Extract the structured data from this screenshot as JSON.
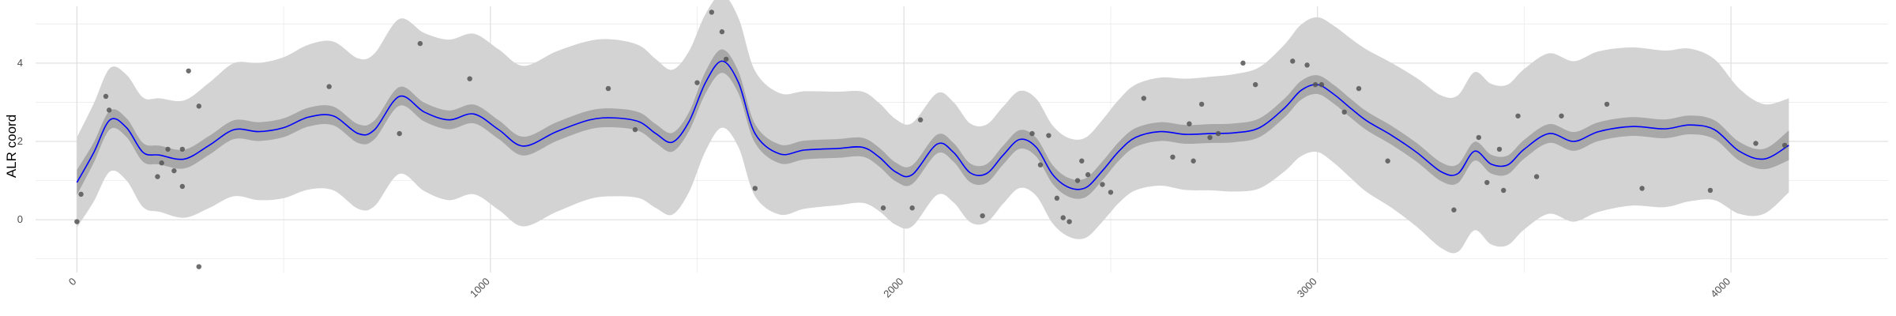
{
  "chart_data": {
    "type": "line",
    "title": "",
    "xlabel": "",
    "ylabel": "ALR coord",
    "xlim": [
      -100,
      4380
    ],
    "ylim": [
      -1.35,
      5.45
    ],
    "x_ticks": [
      0,
      1000,
      2000,
      3000,
      4000
    ],
    "y_ticks": [
      0,
      2,
      4
    ],
    "x_minor_ticks": [
      500,
      1500,
      2500,
      3500
    ],
    "y_minor_ticks": [
      -1,
      1,
      3,
      5
    ],
    "x_tick_rotation": 45,
    "grid": true,
    "colors": {
      "trend_line": "#0000ff",
      "inner_band": "#a8a8a8",
      "outer_band": "#d3d3d3",
      "points": "#555555",
      "grid": "#ebebeb"
    },
    "trend": {
      "x": [
        0,
        40,
        80,
        120,
        160,
        200,
        260,
        320,
        380,
        440,
        500,
        560,
        620,
        680,
        720,
        780,
        840,
        900,
        960,
        1020,
        1080,
        1160,
        1240,
        1300,
        1360,
        1400,
        1440,
        1480,
        1520,
        1560,
        1600,
        1640,
        1700,
        1760,
        1840,
        1900,
        1940,
        1980,
        2020,
        2080,
        2120,
        2160,
        2200,
        2240,
        2280,
        2320,
        2360,
        2400,
        2440,
        2480,
        2520,
        2560,
        2620,
        2680,
        2740,
        2800,
        2860,
        2920,
        2960,
        3000,
        3040,
        3080,
        3120,
        3180,
        3240,
        3300,
        3340,
        3380,
        3420,
        3460,
        3500,
        3560,
        3620,
        3680,
        3760,
        3840,
        3900,
        3960,
        4020,
        4080,
        4140
      ],
      "y": [
        0.95,
        1.7,
        2.55,
        2.35,
        1.72,
        1.65,
        1.55,
        1.9,
        2.3,
        2.25,
        2.35,
        2.62,
        2.65,
        2.2,
        2.3,
        3.15,
        2.75,
        2.55,
        2.7,
        2.3,
        1.88,
        2.25,
        2.55,
        2.6,
        2.5,
        2.2,
        1.98,
        2.5,
        3.5,
        4.05,
        3.5,
        2.2,
        1.68,
        1.78,
        1.82,
        1.85,
        1.6,
        1.22,
        1.15,
        1.93,
        1.72,
        1.2,
        1.18,
        1.65,
        2.05,
        1.85,
        1.15,
        0.82,
        0.82,
        1.25,
        1.75,
        2.1,
        2.25,
        2.18,
        2.2,
        2.22,
        2.35,
        2.85,
        3.3,
        3.45,
        3.2,
        2.85,
        2.52,
        2.15,
        1.72,
        1.22,
        1.18,
        1.75,
        1.42,
        1.4,
        1.8,
        2.2,
        2.0,
        2.25,
        2.38,
        2.32,
        2.42,
        2.3,
        1.75,
        1.55,
        1.9
      ],
      "ci_half_width_inner": [
        0.32,
        0.26,
        0.24,
        0.24,
        0.24,
        0.24,
        0.24,
        0.24,
        0.24,
        0.24,
        0.24,
        0.24,
        0.24,
        0.24,
        0.24,
        0.24,
        0.24,
        0.24,
        0.24,
        0.24,
        0.24,
        0.24,
        0.24,
        0.24,
        0.24,
        0.24,
        0.24,
        0.24,
        0.28,
        0.3,
        0.28,
        0.24,
        0.24,
        0.24,
        0.24,
        0.24,
        0.24,
        0.24,
        0.24,
        0.24,
        0.24,
        0.24,
        0.24,
        0.24,
        0.24,
        0.24,
        0.24,
        0.24,
        0.24,
        0.24,
        0.24,
        0.24,
        0.24,
        0.24,
        0.24,
        0.24,
        0.24,
        0.24,
        0.24,
        0.24,
        0.24,
        0.24,
        0.24,
        0.24,
        0.24,
        0.24,
        0.24,
        0.24,
        0.24,
        0.24,
        0.24,
        0.24,
        0.24,
        0.24,
        0.24,
        0.24,
        0.24,
        0.24,
        0.24,
        0.26,
        0.38
      ],
      "ci_half_width_outer": [
        1.15,
        1.25,
        1.32,
        1.35,
        1.4,
        1.45,
        1.5,
        1.6,
        1.7,
        1.75,
        1.8,
        1.85,
        1.9,
        1.92,
        1.95,
        1.98,
        2.02,
        2.05,
        2.05,
        2.05,
        2.05,
        2.05,
        2.02,
        2.0,
        1.95,
        1.9,
        1.85,
        1.8,
        1.75,
        1.7,
        1.65,
        1.6,
        1.55,
        1.5,
        1.45,
        1.42,
        1.38,
        1.35,
        1.32,
        1.3,
        1.28,
        1.26,
        1.25,
        1.24,
        1.24,
        1.24,
        1.25,
        1.26,
        1.28,
        1.3,
        1.32,
        1.35,
        1.38,
        1.42,
        1.45,
        1.5,
        1.55,
        1.62,
        1.68,
        1.72,
        1.75,
        1.78,
        1.82,
        1.85,
        1.9,
        1.95,
        2.0,
        2.02,
        2.05,
        2.05,
        2.05,
        2.05,
        2.05,
        2.05,
        2.02,
        2.0,
        1.95,
        1.8,
        1.6,
        1.4,
        1.2
      ]
    },
    "points": {
      "x": [
        0,
        10,
        70,
        78,
        195,
        205,
        220,
        235,
        255,
        255,
        270,
        295,
        295,
        610,
        780,
        830,
        950,
        1285,
        1350,
        1500,
        1535,
        1560,
        1570,
        1640,
        1950,
        2020,
        2040,
        2190,
        2310,
        2330,
        2350,
        2370,
        2385,
        2400,
        2420,
        2430,
        2445,
        2480,
        2500,
        2580,
        2650,
        2690,
        2700,
        2720,
        2740,
        2760,
        2820,
        2850,
        2940,
        2975,
        2995,
        3010,
        3065,
        3100,
        3170,
        3330,
        3390,
        3410,
        3440,
        3450,
        3485,
        3530,
        3590,
        3700,
        3785,
        3950,
        4060,
        4130
      ],
      "y": [
        -0.05,
        0.65,
        3.15,
        2.8,
        1.1,
        1.45,
        1.8,
        1.25,
        0.85,
        1.8,
        3.8,
        2.9,
        -1.2,
        3.4,
        2.2,
        4.5,
        3.6,
        3.35,
        2.3,
        3.5,
        5.3,
        4.8,
        4.1,
        0.8,
        0.3,
        0.3,
        2.55,
        0.1,
        2.2,
        1.4,
        2.15,
        0.55,
        0.05,
        -0.05,
        1.0,
        1.5,
        1.15,
        0.9,
        0.7,
        3.1,
        1.6,
        2.45,
        1.5,
        2.95,
        2.1,
        2.2,
        4.0,
        3.45,
        4.05,
        3.95,
        3.45,
        3.45,
        2.75,
        3.35,
        1.5,
        0.25,
        2.1,
        0.95,
        1.8,
        0.75,
        2.65,
        1.1,
        2.65,
        2.95,
        0.8,
        0.75,
        1.95,
        1.9
      ]
    }
  }
}
